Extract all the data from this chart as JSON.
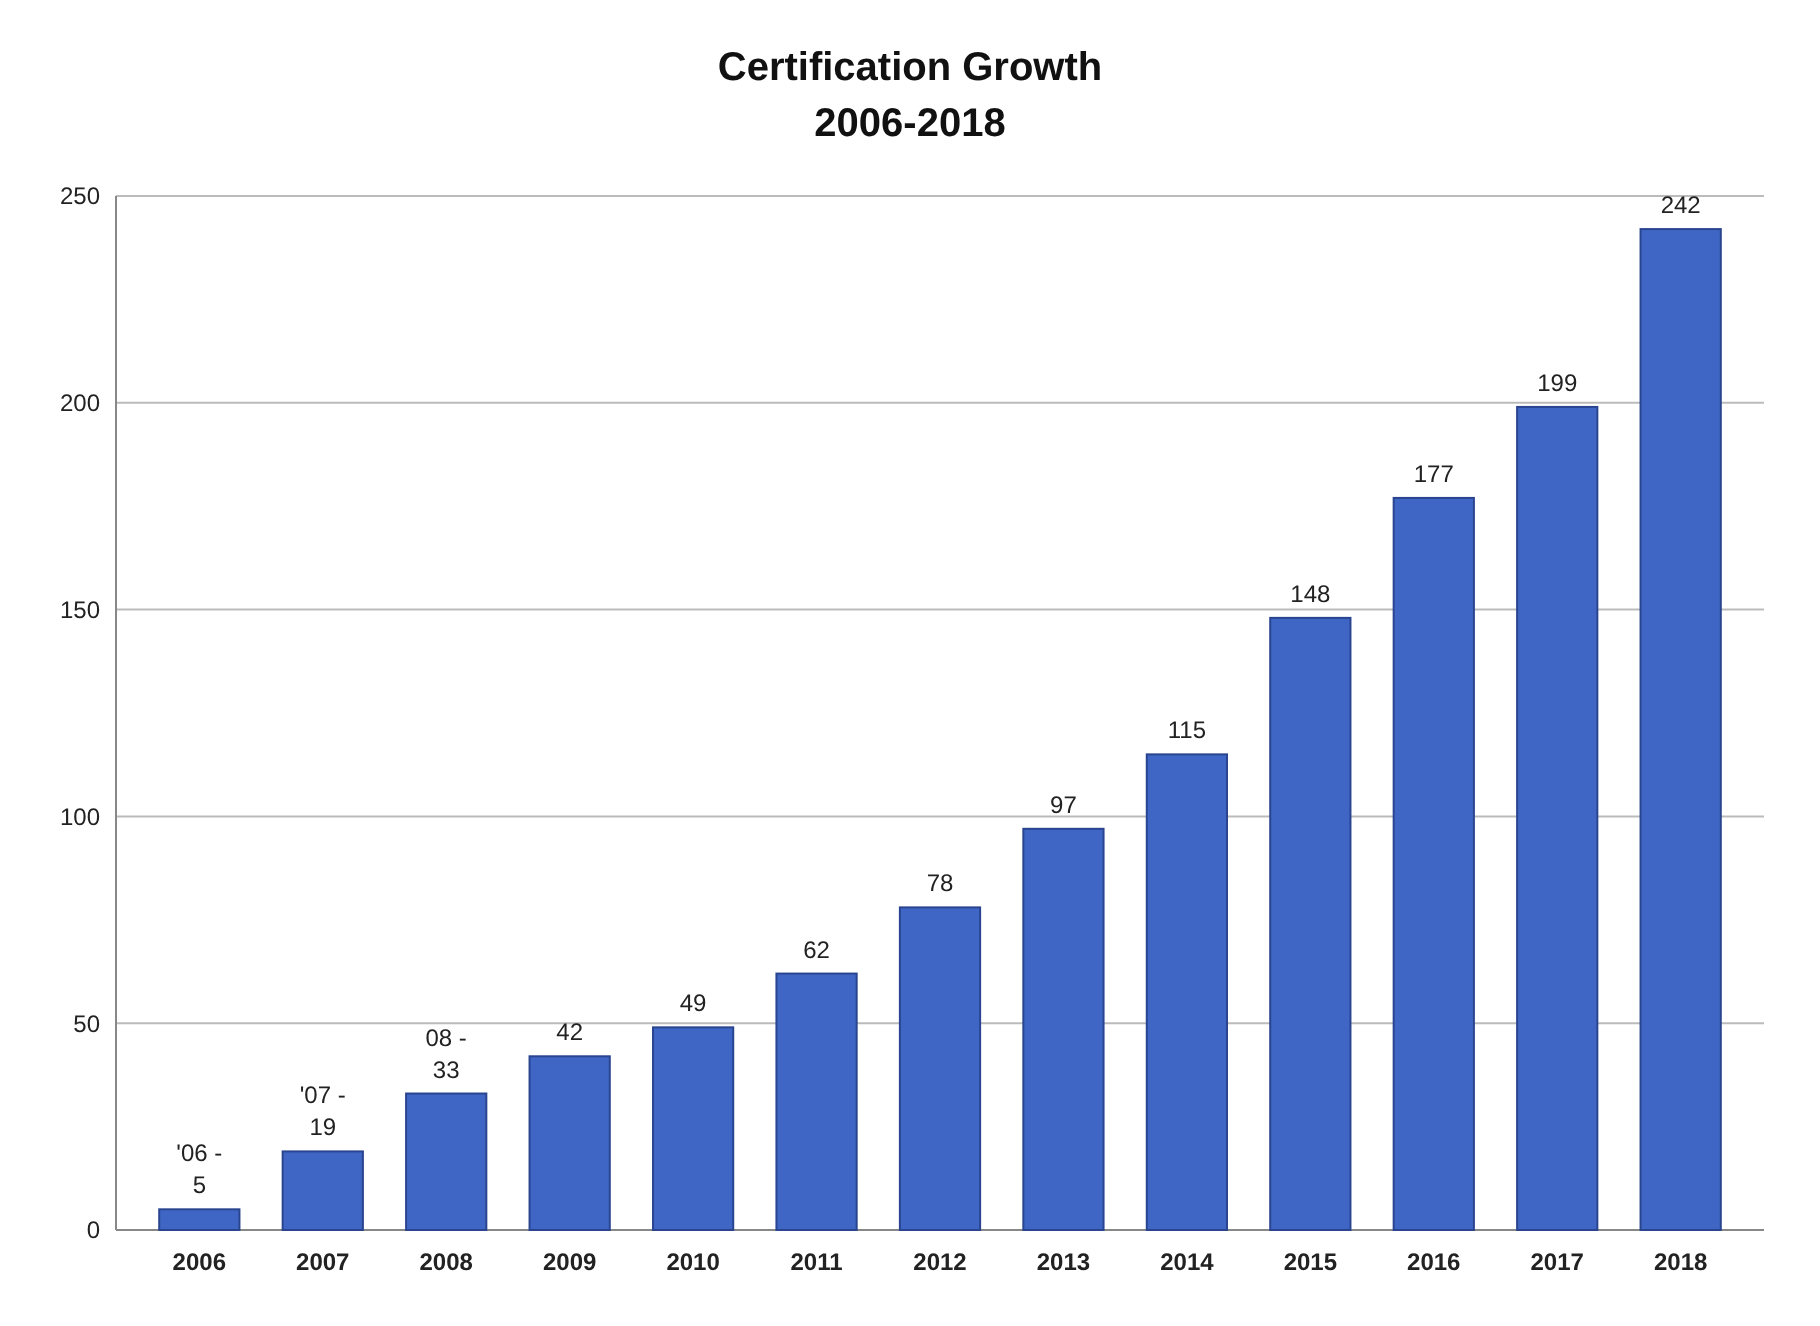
{
  "chart_data": {
    "type": "bar",
    "title": "Certification Growth\n2006-2018",
    "categories": [
      "2006",
      "2007",
      "2008",
      "2009",
      "2010",
      "2011",
      "2012",
      "2013",
      "2014",
      "2015",
      "2016",
      "2017",
      "2018"
    ],
    "values": [
      5,
      19,
      33,
      42,
      49,
      62,
      78,
      97,
      115,
      148,
      177,
      199,
      242
    ],
    "value_labels": [
      "5",
      "19",
      "33",
      "42",
      "49",
      "62",
      "78",
      "97",
      "115",
      "148",
      "177",
      "199",
      "242"
    ],
    "annotations": [
      {
        "text": "'06 -",
        "x": "2006",
        "y": 5
      },
      {
        "text": "'07 -",
        "x": "2007",
        "y": 19
      },
      {
        "text": "08 -",
        "x": "2008",
        "y": 33
      }
    ],
    "color": "#3f66c4",
    "ylim": [
      0,
      250
    ],
    "yticks": [
      0,
      50,
      100,
      150,
      200,
      250
    ],
    "grid": "y"
  }
}
